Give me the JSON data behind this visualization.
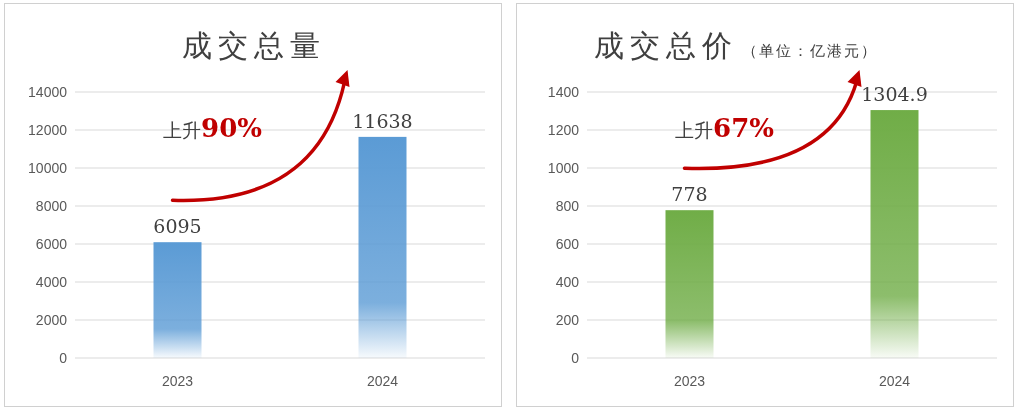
{
  "chart_data": [
    {
      "type": "bar",
      "title": "成交总量",
      "categories": [
        "2023",
        "2024"
      ],
      "values": [
        6095,
        11638
      ],
      "color": "#5b9bd5",
      "ylim": [
        0,
        14000
      ],
      "yticks": [
        0,
        2000,
        4000,
        6000,
        8000,
        10000,
        12000,
        14000
      ],
      "grid": "y",
      "data_labels": true,
      "annotations": [
        "上升90%"
      ]
    },
    {
      "type": "bar",
      "title": "成交总价",
      "subtitle": "（单位：亿港元）",
      "categories": [
        "2023",
        "2024"
      ],
      "values": [
        778,
        1304.9
      ],
      "color": "#70ad47",
      "ylim": [
        0,
        1400
      ],
      "yticks": [
        0,
        200,
        400,
        600,
        800,
        1000,
        1200,
        1400
      ],
      "grid": "y",
      "data_labels": true,
      "annotations": [
        "上升67%"
      ]
    }
  ]
}
